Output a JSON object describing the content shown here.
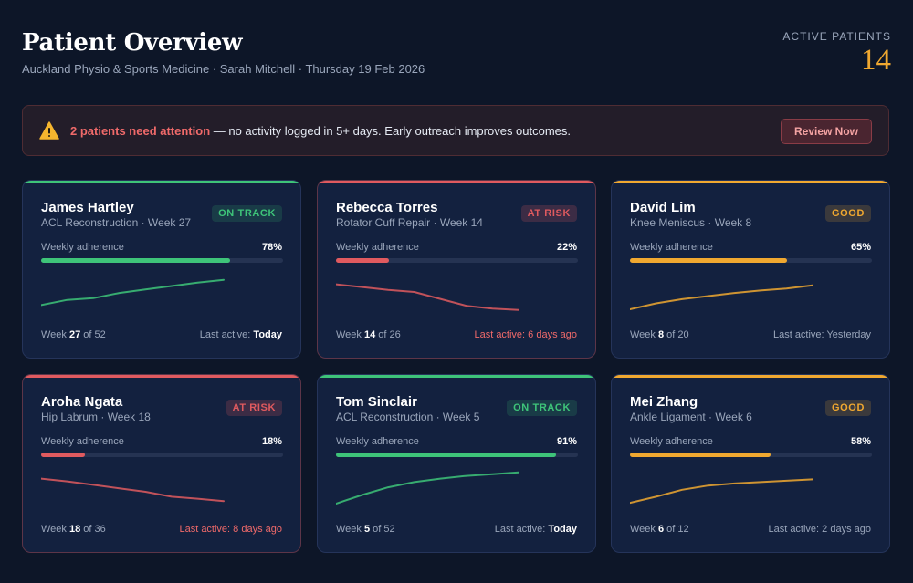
{
  "header": {
    "title": "Patient Overview",
    "subtitle": "Auckland Physio & Sports Medicine · Sarah Mitchell · Thursday 19 Feb 2026",
    "stat_label": "ACTIVE PATIENTS",
    "stat_value": "14"
  },
  "alert": {
    "icon": "warning-icon",
    "strong": "2 patients need attention",
    "text": " — no activity logged in 5+ days. Early outreach improves outcomes.",
    "button": "Review Now"
  },
  "status_colors": {
    "on_track": "#3ec479",
    "at_risk": "#e05a5f",
    "good": "#f0a830"
  },
  "adherence_label": "Weekly adherence",
  "week_word": "Week",
  "of_word": "of",
  "last_active_prefix": "Last active: ",
  "patients": [
    {
      "name": "James Hartley",
      "detail": "ACL Reconstruction · Week 27",
      "status": "on_track",
      "badge": "ON TRACK",
      "adherence": "78%",
      "adherence_value": 0.78,
      "week": "27",
      "total_weeks": "52",
      "last_active": "Today",
      "last_alert": false,
      "trend": [
        0.2,
        0.35,
        0.4,
        0.55,
        0.65,
        0.75,
        0.85,
        0.93
      ]
    },
    {
      "name": "Rebecca Torres",
      "detail": "Rotator Cuff Repair · Week 14",
      "status": "at_risk",
      "badge": "AT RISK",
      "adherence": "22%",
      "adherence_value": 0.22,
      "week": "14",
      "total_weeks": "26",
      "last_active": "6 days ago",
      "last_alert": true,
      "trend": [
        0.8,
        0.72,
        0.64,
        0.58,
        0.38,
        0.18,
        0.1,
        0.06
      ]
    },
    {
      "name": "David Lim",
      "detail": "Knee Meniscus · Week 8",
      "status": "good",
      "badge": "GOOD",
      "adherence": "65%",
      "adherence_value": 0.65,
      "week": "8",
      "total_weeks": "20",
      "last_active": "Yesterday",
      "last_alert": false,
      "trend": [
        0.08,
        0.25,
        0.37,
        0.46,
        0.55,
        0.62,
        0.68,
        0.77
      ]
    },
    {
      "name": "Aroha Ngata",
      "detail": "Hip Labrum · Week 18",
      "status": "at_risk",
      "badge": "AT RISK",
      "adherence": "18%",
      "adherence_value": 0.18,
      "week": "18",
      "total_weeks": "36",
      "last_active": "8 days ago",
      "last_alert": true,
      "trend": [
        0.8,
        0.72,
        0.62,
        0.52,
        0.42,
        0.28,
        0.22,
        0.15
      ]
    },
    {
      "name": "Tom Sinclair",
      "detail": "ACL Reconstruction · Week 5",
      "status": "on_track",
      "badge": "ON TRACK",
      "adherence": "91%",
      "adherence_value": 0.91,
      "week": "5",
      "total_weeks": "52",
      "last_active": "Today",
      "last_alert": false,
      "trend": [
        0.08,
        0.33,
        0.55,
        0.7,
        0.8,
        0.88,
        0.93,
        0.98
      ]
    },
    {
      "name": "Mei Zhang",
      "detail": "Ankle Ligament · Week 6",
      "status": "good",
      "badge": "GOOD",
      "adherence": "58%",
      "adherence_value": 0.58,
      "week": "6",
      "total_weeks": "12",
      "last_active": "2 days ago",
      "last_alert": false,
      "trend": [
        0.1,
        0.28,
        0.48,
        0.6,
        0.66,
        0.7,
        0.74,
        0.78
      ]
    }
  ]
}
